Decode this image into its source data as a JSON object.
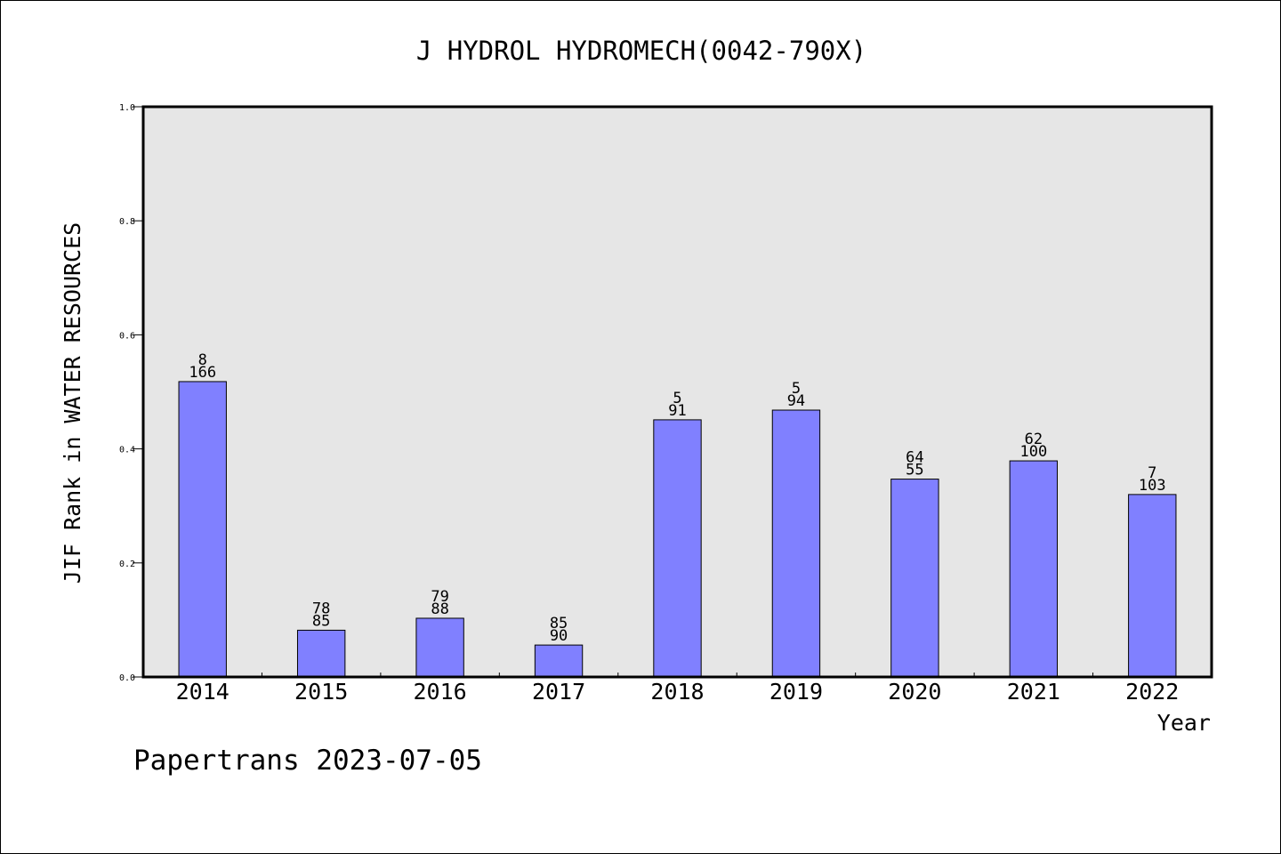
{
  "chart_data": {
    "type": "bar",
    "title": "J HYDROL HYDROMECH(0042-790X)",
    "xlabel": "Year",
    "ylabel": "JIF Rank in WATER RESOURCES",
    "ylim": [
      0,
      1.0
    ],
    "yticks": [
      "0.0",
      "0.2",
      "0.4",
      "0.6",
      "0.8",
      "1.0"
    ],
    "grid": false,
    "categories": [
      "2014",
      "2015",
      "2016",
      "2017",
      "2018",
      "2019",
      "2020",
      "2021",
      "2022"
    ],
    "values": [
      0.518,
      0.082,
      0.103,
      0.056,
      0.451,
      0.468,
      0.347,
      0.379,
      0.32
    ],
    "labels_top": [
      "8",
      "78",
      "79",
      "85",
      "5",
      "5",
      "64",
      "62",
      "7"
    ],
    "labels_bottom": [
      "166",
      "85",
      "88",
      "90",
      "91",
      "94",
      "55",
      "100",
      "103"
    ],
    "bar_color": "#8080ff",
    "plot_background": "#e6e6e6"
  },
  "footer": {
    "credit": "Papertrans 2023-07-05"
  }
}
